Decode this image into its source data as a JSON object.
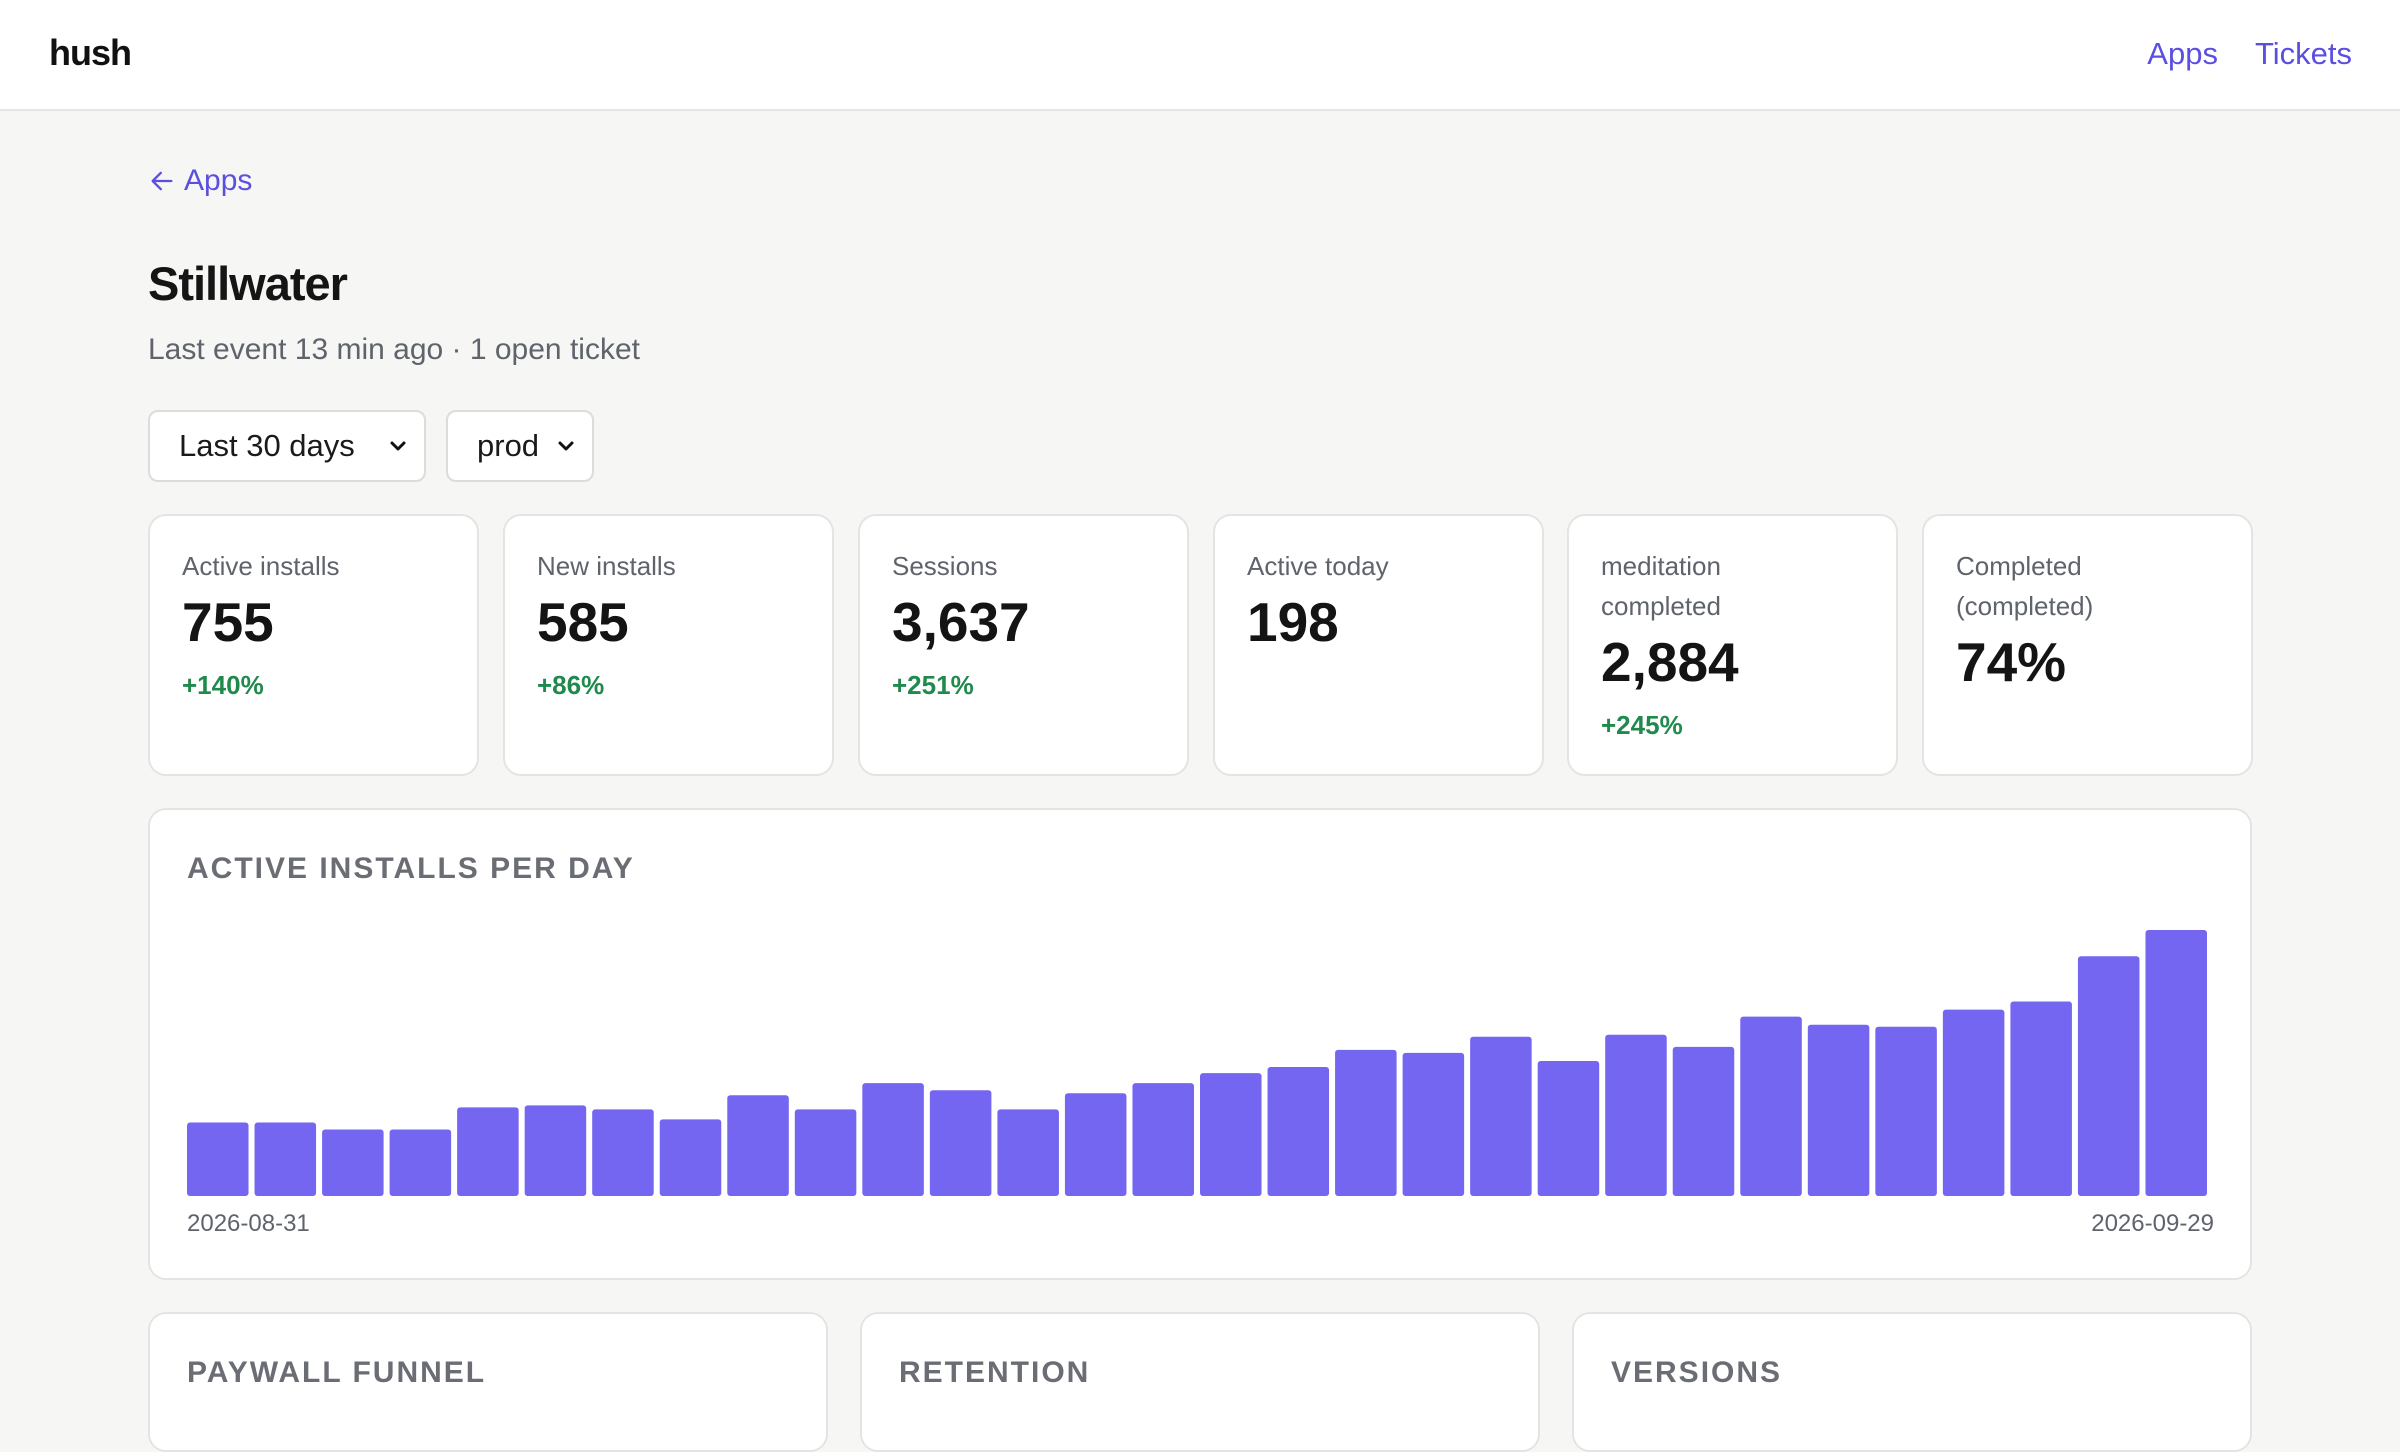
{
  "header": {
    "brand": "hush",
    "nav": [
      "Apps",
      "Tickets"
    ]
  },
  "breadcrumb": {
    "back_label": "Apps"
  },
  "app": {
    "title": "Stillwater",
    "subtitle": "Last event 13 min ago · 1 open ticket"
  },
  "filters": {
    "range": "Last 30 days",
    "env": "prod"
  },
  "kpis": [
    {
      "label": "Active installs",
      "value": "755",
      "delta": "+140%"
    },
    {
      "label": "New installs",
      "value": "585",
      "delta": "+86%"
    },
    {
      "label": "Sessions",
      "value": "3,637",
      "delta": "+251%"
    },
    {
      "label": "Active today",
      "value": "198",
      "delta": ""
    },
    {
      "label": "meditation completed",
      "value": "2,884",
      "delta": "+245%"
    },
    {
      "label": "Completed (completed)",
      "value": "74%",
      "delta": ""
    }
  ],
  "chart": {
    "title": "ACTIVE INSTALLS PER DAY",
    "start_date": "2026-08-31",
    "end_date": "2026-09-29"
  },
  "chart_data": {
    "type": "bar",
    "title": "ACTIVE INSTALLS PER DAY",
    "x": [
      "2026-08-31",
      "2026-09-01",
      "2026-09-02",
      "2026-09-03",
      "2026-09-04",
      "2026-09-05",
      "2026-09-06",
      "2026-09-07",
      "2026-09-08",
      "2026-09-09",
      "2026-09-10",
      "2026-09-11",
      "2026-09-12",
      "2026-09-13",
      "2026-09-14",
      "2026-09-15",
      "2026-09-16",
      "2026-09-17",
      "2026-09-18",
      "2026-09-19",
      "2026-09-20",
      "2026-09-21",
      "2026-09-22",
      "2026-09-23",
      "2026-09-24",
      "2026-09-25",
      "2026-09-26",
      "2026-09-27",
      "2026-09-28",
      "2026-09-29"
    ],
    "values": [
      73,
      73,
      66,
      66,
      88,
      90,
      86,
      76,
      100,
      86,
      112,
      105,
      86,
      102,
      112,
      122,
      128,
      145,
      142,
      158,
      134,
      160,
      148,
      178,
      170,
      168,
      185,
      193,
      238,
      264
    ],
    "ylim": [
      0,
      264
    ],
    "color": "#7466f1",
    "xlabel": "",
    "ylabel": ""
  },
  "sections": [
    {
      "title": "PAYWALL FUNNEL"
    },
    {
      "title": "RETENTION"
    },
    {
      "title": "VERSIONS"
    }
  ],
  "colors": {
    "accent": "#5b4fe0",
    "bar": "#7466f1",
    "positive": "#1f8a4c"
  }
}
